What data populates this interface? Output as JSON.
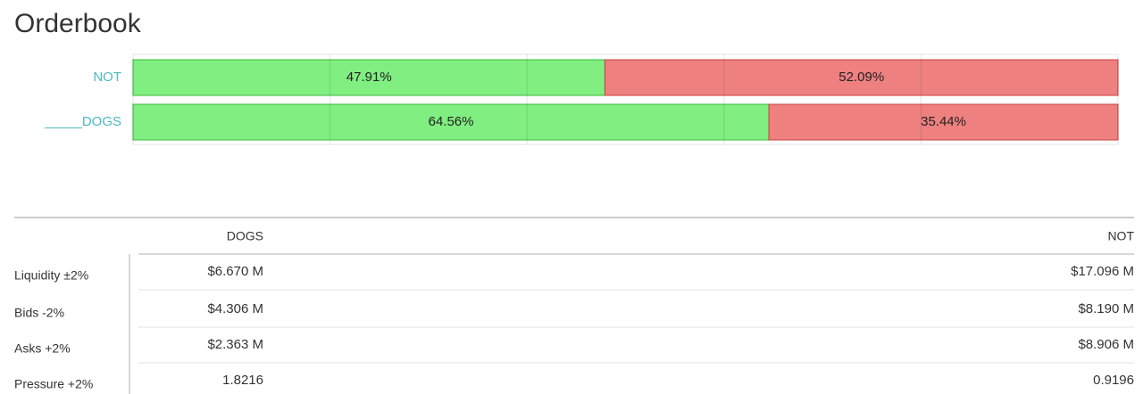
{
  "title": "Orderbook",
  "chart_data": {
    "type": "bar",
    "orientation": "horizontal",
    "stacked": true,
    "categories": [
      "NOT",
      "_____DOGS"
    ],
    "series": [
      {
        "color": "#80ee80",
        "values": [
          47.91,
          64.56
        ],
        "value_labels": [
          "47.91%",
          "64.56%"
        ]
      },
      {
        "color": "#ee8080",
        "values": [
          52.09,
          35.44
        ],
        "value_labels": [
          "52.09%",
          "35.44%"
        ]
      }
    ],
    "xlim": [
      0,
      100
    ],
    "xticks": [
      0,
      20,
      40,
      60,
      80,
      100
    ],
    "grid": true
  },
  "table": {
    "columns": [
      "DOGS",
      "NOT"
    ],
    "rows": [
      {
        "label": "Liquidity ±2%",
        "cells": [
          "$6.670 M",
          "$17.096 M"
        ]
      },
      {
        "label": "Bids -2%",
        "cells": [
          "$4.306 M",
          "$8.190 M"
        ]
      },
      {
        "label": "Asks +2%",
        "cells": [
          "$2.363 M",
          "$8.906 M"
        ]
      },
      {
        "label": "Pressure +2%",
        "cells": [
          "1.8216",
          "0.9196"
        ]
      }
    ]
  }
}
